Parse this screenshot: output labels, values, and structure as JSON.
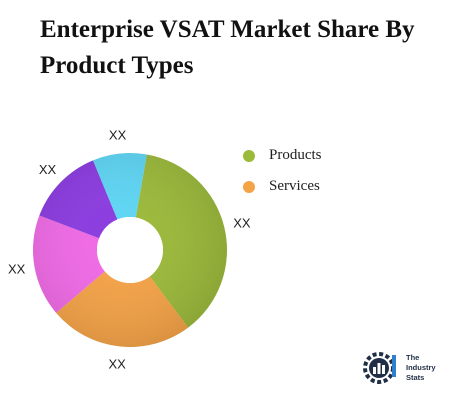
{
  "chart_data": {
    "type": "pie",
    "title": "Enterprise VSAT Market Share By Product Types",
    "donut": true,
    "slices": [
      {
        "label": "XX",
        "value": 37,
        "color": "#9cba3a"
      },
      {
        "label": "XX",
        "value": 24,
        "color": "#f5a347"
      },
      {
        "label": "XX",
        "value": 17,
        "color": "#f06ae6"
      },
      {
        "label": "XX",
        "value": 13,
        "color": "#8b3be0"
      },
      {
        "label": "XX",
        "value": 9,
        "color": "#5ed6f5"
      }
    ],
    "legend": {
      "placement": "right",
      "items": [
        {
          "label": "Products",
          "color": "#9cba3a"
        },
        {
          "label": "Services",
          "color": "#f5a347"
        }
      ]
    }
  },
  "brand": {
    "line1": "The",
    "line2": "Industry",
    "line3": "Stats"
  }
}
